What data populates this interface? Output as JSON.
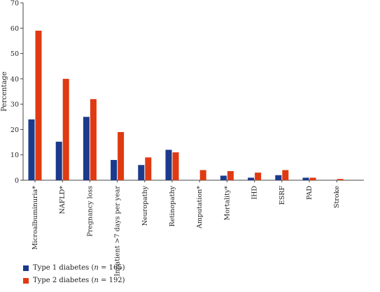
{
  "chart_data": {
    "type": "bar",
    "ylabel": "Percentage",
    "ylim": [
      0,
      70
    ],
    "yticks": [
      "0",
      "10",
      "20",
      "30",
      "40",
      "50",
      "60",
      "70"
    ],
    "grid": false,
    "legend_position": "bottom-left",
    "categories": [
      "Microalbuminuria*",
      "NAFLD*",
      "Pregnancy loss",
      "Inpatient >7 days per year",
      "Neuropathy",
      "Retinopathy",
      "Amputation*",
      "Mortality*",
      "IHD",
      "ESRF",
      "PAD",
      "Stroke"
    ],
    "series": [
      {
        "name": "Type 1 diabetes (n = 165)",
        "color": "#1b3a8c",
        "values": [
          24,
          15.2,
          25,
          8,
          6,
          12,
          0,
          1.8,
          1,
          2,
          1,
          0
        ]
      },
      {
        "name": "Type 2 diabetes (n = 192)",
        "color": "#e03a12",
        "values": [
          59,
          40,
          32,
          19,
          9,
          11,
          4,
          3.6,
          3,
          4,
          1,
          0.5
        ]
      }
    ]
  },
  "legend": {
    "items": [
      {
        "prefix": "Type 1 diabetes (",
        "n": "n",
        "suffix": " = 165)"
      },
      {
        "prefix": "Type 2 diabetes (",
        "n": "n",
        "suffix": " = 192)"
      }
    ]
  }
}
